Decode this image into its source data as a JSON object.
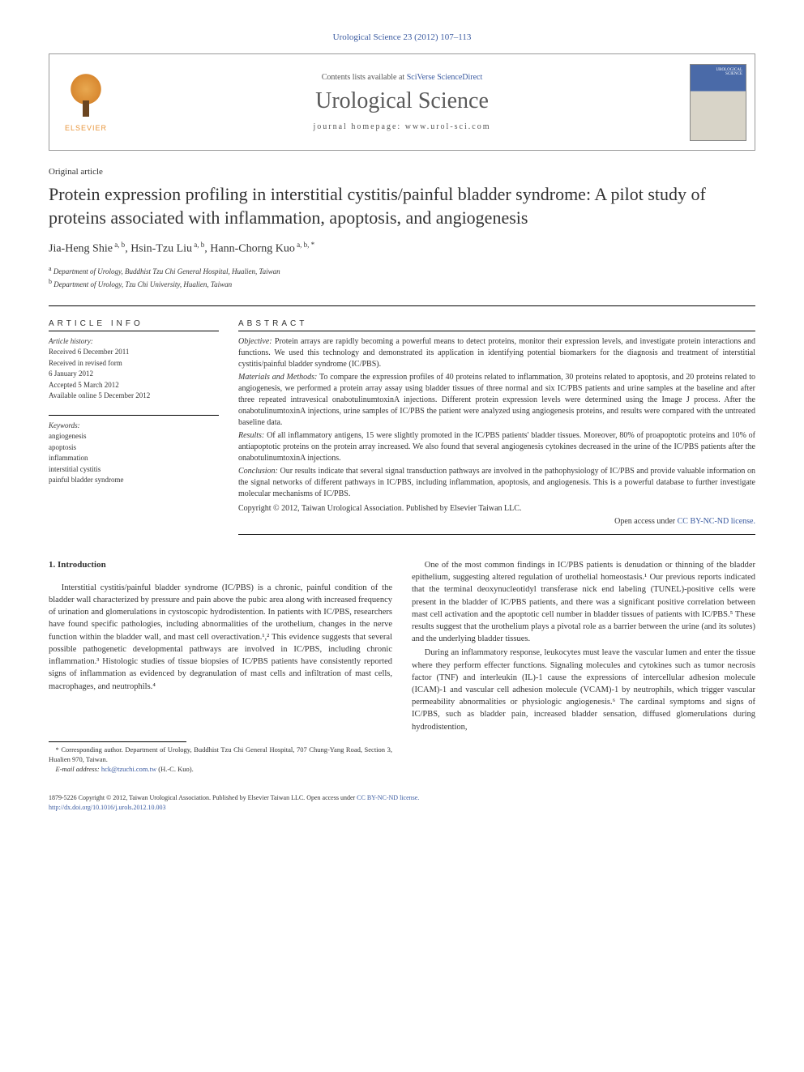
{
  "journal_ref": "Urological Science 23 (2012) 107–113",
  "header": {
    "contents_prefix": "Contents lists available at ",
    "contents_link": "SciVerse ScienceDirect",
    "journal_name": "Urological Science",
    "homepage_label": "journal homepage: ",
    "homepage_url": "www.urol-sci.com",
    "elsevier": "ELSEVIER"
  },
  "article_type": "Original article",
  "title": "Protein expression profiling in interstitial cystitis/painful bladder syndrome: A pilot study of proteins associated with inflammation, apoptosis, and angiogenesis",
  "authors_html": "Jia-Heng Shie<sup> a, b</sup>, Hsin-Tzu Liu<sup> a, b</sup>, Hann-Chorng Kuo<sup> a, b, *</sup>",
  "affiliations": [
    {
      "sup": "a",
      "text": "Department of Urology, Buddhist Tzu Chi General Hospital, Hualien, Taiwan"
    },
    {
      "sup": "b",
      "text": "Department of Urology, Tzu Chi University, Hualien, Taiwan"
    }
  ],
  "article_info": {
    "heading": "ARTICLE INFO",
    "history_label": "Article history:",
    "history": [
      "Received 6 December 2011",
      "Received in revised form",
      "6 January 2012",
      "Accepted 5 March 2012",
      "Available online 5 December 2012"
    ],
    "keywords_label": "Keywords:",
    "keywords": [
      "angiogenesis",
      "apoptosis",
      "inflammation",
      "interstitial cystitis",
      "painful bladder syndrome"
    ]
  },
  "abstract": {
    "heading": "ABSTRACT",
    "objective_label": "Objective:",
    "objective": "Protein arrays are rapidly becoming a powerful means to detect proteins, monitor their expression levels, and investigate protein interactions and functions. We used this technology and demonstrated its application in identifying potential biomarkers for the diagnosis and treatment of interstitial cystitis/painful bladder syndrome (IC/PBS).",
    "methods_label": "Materials and Methods:",
    "methods": "To compare the expression profiles of 40 proteins related to inflammation, 30 proteins related to apoptosis, and 20 proteins related to angiogenesis, we performed a protein array assay using bladder tissues of three normal and six IC/PBS patients and urine samples at the baseline and after three repeated intravesical onabotulinumtoxinA injections. Different protein expression levels were determined using the Image J process. After the onabotulinumtoxinA injections, urine samples of IC/PBS the patient were analyzed using angiogenesis proteins, and results were compared with the untreated baseline data.",
    "results_label": "Results:",
    "results": "Of all inflammatory antigens, 15 were slightly promoted in the IC/PBS patients' bladder tissues. Moreover, 80% of proapoptotic proteins and 10% of antiapoptotic proteins on the protein array increased. We also found that several angiogenesis cytokines decreased in the urine of the IC/PBS patients after the onabotulinumtoxinA injections.",
    "conclusion_label": "Conclusion:",
    "conclusion": "Our results indicate that several signal transduction pathways are involved in the pathophysiology of IC/PBS and provide valuable information on the signal networks of different pathways in IC/PBS, including inflammation, apoptosis, and angiogenesis. This is a powerful database to further investigate molecular mechanisms of IC/PBS.",
    "copyright": "Copyright © 2012, Taiwan Urological Association. Published by Elsevier Taiwan LLC.",
    "open_access_prefix": "Open access under ",
    "open_access_link": "CC BY-NC-ND license."
  },
  "section_heading": "1. Introduction",
  "body": {
    "col1": [
      "Interstitial cystitis/painful bladder syndrome (IC/PBS) is a chronic, painful condition of the bladder wall characterized by pressure and pain above the pubic area along with increased frequency of urination and glomerulations in cystoscopic hydrodistention. In patients with IC/PBS, researchers have found specific pathologies, including abnormalities of the urothelium, changes in the nerve function within the bladder wall, and mast cell overactivation.¹,² This evidence suggests that several possible pathogenetic developmental pathways are involved in IC/PBS, including chronic inflammation.³ Histologic studies of tissue biopsies of IC/PBS patients have consistently reported signs of inflammation as evidenced by degranulation of mast cells and infiltration of mast cells, macrophages, and neutrophils.⁴"
    ],
    "col2": [
      "One of the most common findings in IC/PBS patients is denudation or thinning of the bladder epithelium, suggesting altered regulation of urothelial homeostasis.¹ Our previous reports indicated that the terminal deoxynucleotidyl transferase nick end labeling (TUNEL)-positive cells were present in the bladder of IC/PBS patients, and there was a significant positive correlation between mast cell activation and the apoptotic cell number in bladder tissues of patients with IC/PBS.⁵ These results suggest that the urothelium plays a pivotal role as a barrier between the urine (and its solutes) and the underlying bladder tissues.",
      "During an inflammatory response, leukocytes must leave the vascular lumen and enter the tissue where they perform effecter functions. Signaling molecules and cytokines such as tumor necrosis factor (TNF) and interleukin (IL)-1 cause the expressions of intercellular adhesion molecule (ICAM)-1 and vascular cell adhesion molecule (VCAM)-1 by neutrophils, which trigger vascular permeability abnormalities or physiologic angiogenesis.⁶ The cardinal symptoms and signs of IC/PBS, such as bladder pain, increased bladder sensation, diffused glomerulations during hydrodistention,"
    ]
  },
  "footnote": {
    "corresponding": "* Corresponding author. Department of Urology, Buddhist Tzu Chi General Hospital, 707 Chung-Yang Road, Section 3, Hualien 970, Taiwan.",
    "email_label": "E-mail address:",
    "email": "hck@tzuchi.com.tw",
    "email_tail": "(H.-C. Kuo)."
  },
  "footer": {
    "issn": "1879-5226 Copyright © 2012, Taiwan Urological Association. Published by Elsevier Taiwan LLC.",
    "open_access_prefix": "Open access under ",
    "open_access_link": "CC BY-NC-ND license.",
    "doi": "http://dx.doi.org/10.1016/j.urols.2012.10.003"
  },
  "colors": {
    "link": "#3a5aa0",
    "text": "#333333",
    "elsevier_orange": "#e8963c"
  }
}
